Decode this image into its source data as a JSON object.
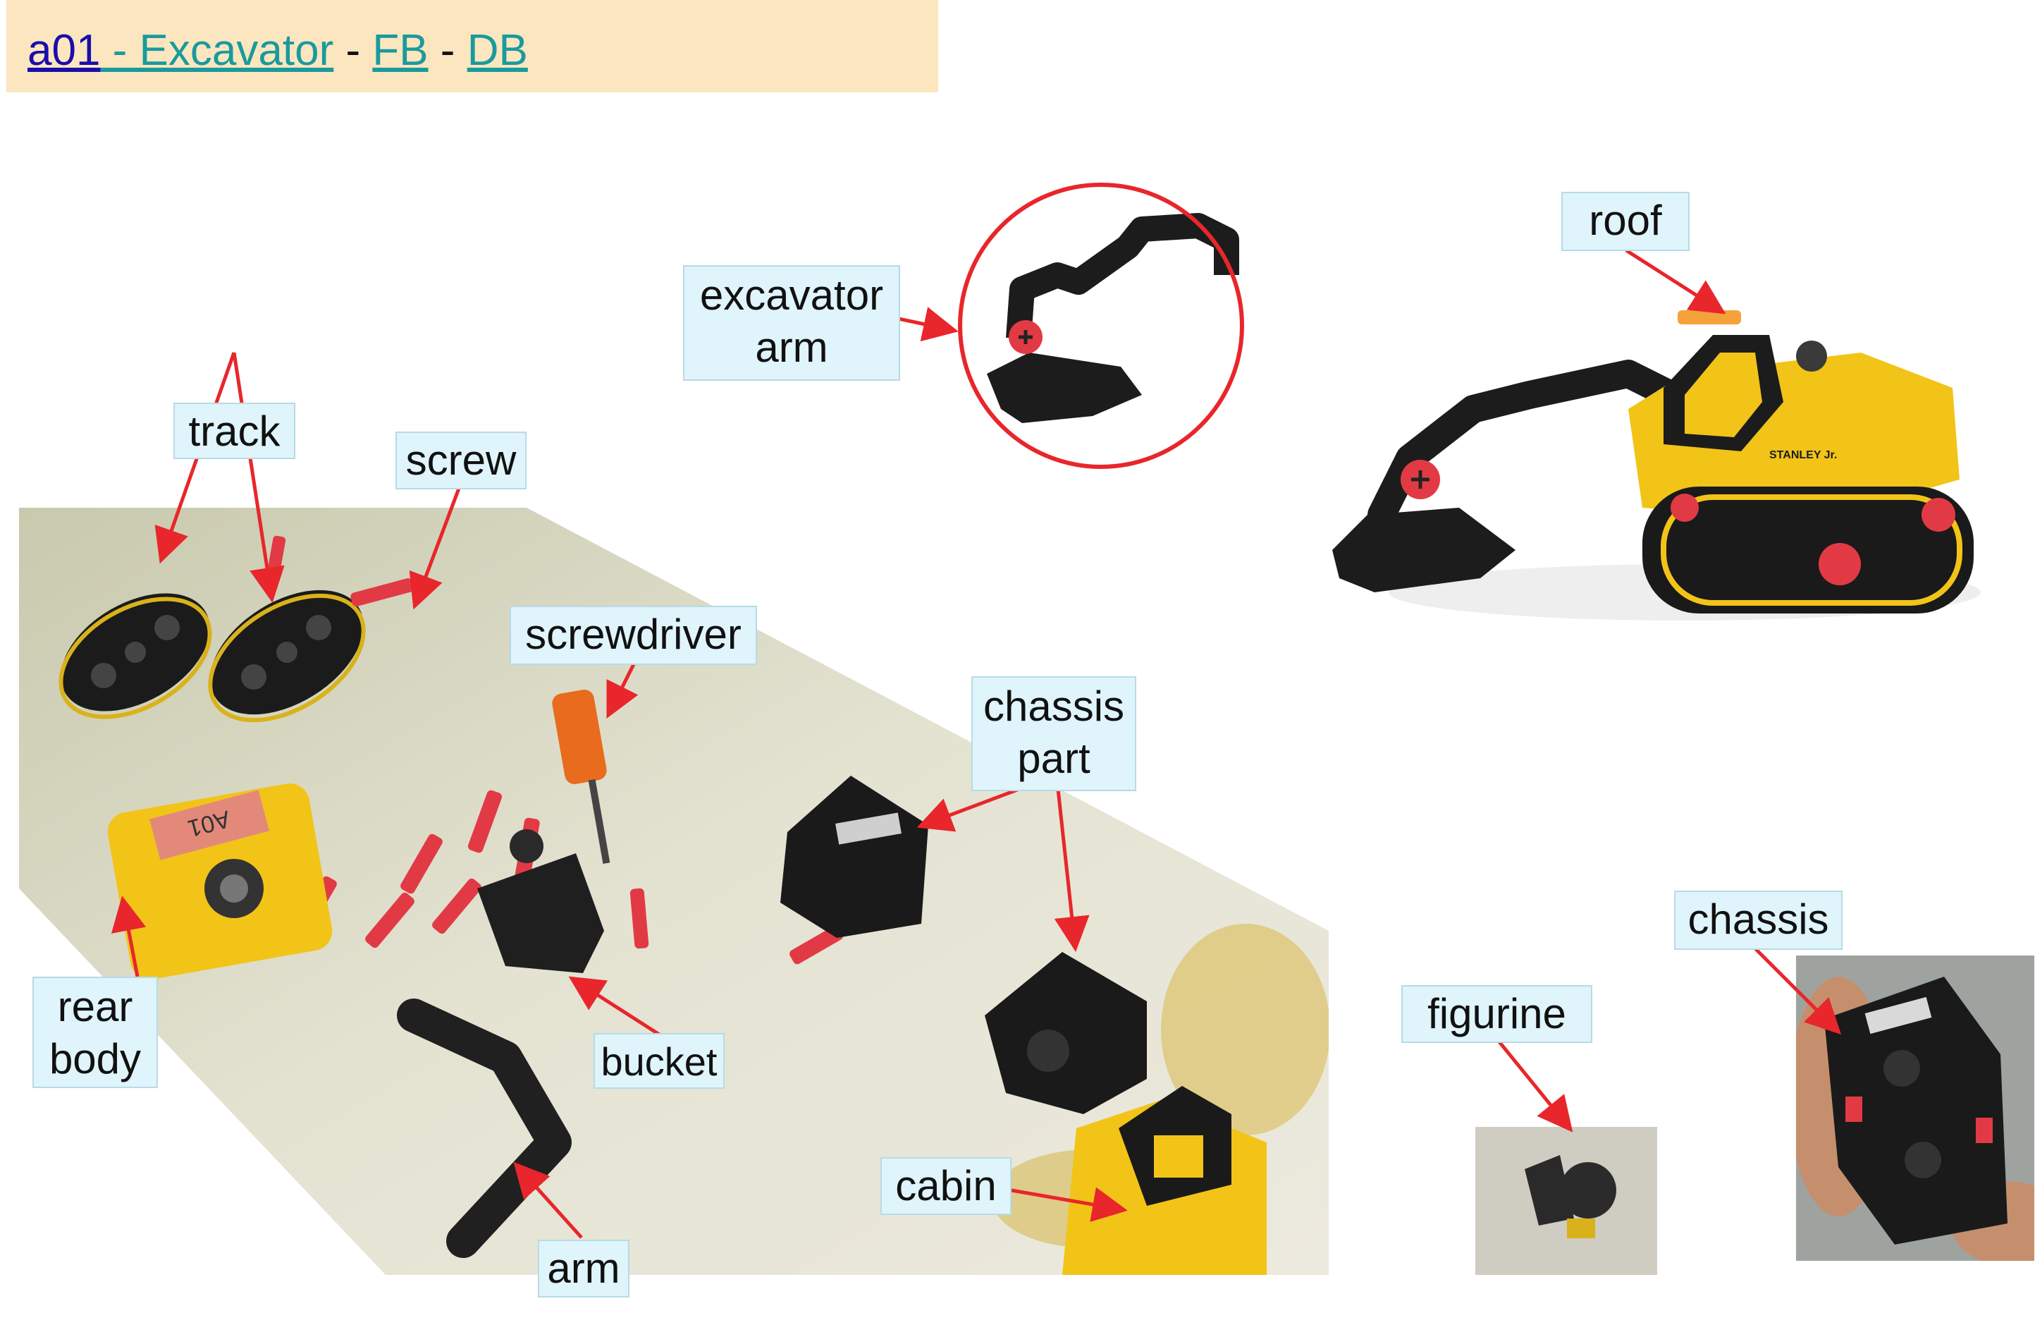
{
  "header": {
    "id_link": "a01",
    "title_link": " - Excavator",
    "sep1": " - ",
    "fb_link": "FB",
    "sep2": " - ",
    "db_link": "DB"
  },
  "labels": {
    "track": "track",
    "screw": "screw",
    "screwdriver": "screwdriver",
    "chassis_part_1": "chassis",
    "chassis_part_2": "part",
    "rear_body_1": "rear",
    "rear_body_2": "body",
    "bucket": "bucket",
    "arm": "arm",
    "cabin": "cabin",
    "excavator_arm_1": "excavator",
    "excavator_arm_2": "arm",
    "roof": "roof",
    "figurine": "figurine",
    "chassis": "chassis"
  },
  "decals": {
    "tag": "A01",
    "brand": "STANLEY Jr."
  },
  "colors": {
    "header_bg": "#fbe6c0",
    "label_bg": "#dff4fb",
    "arrow": "#e8262b",
    "toy_yellow": "#f2c418",
    "toy_black": "#1c1c1c",
    "screw_red": "#e23a45"
  }
}
